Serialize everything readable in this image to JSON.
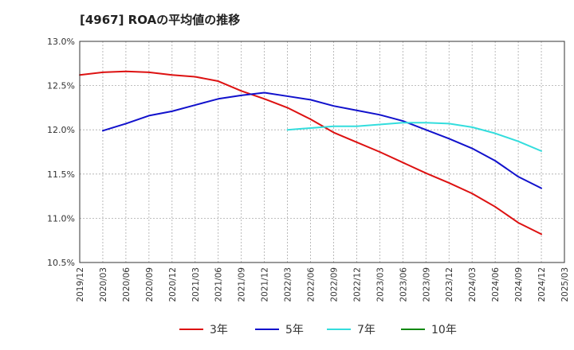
{
  "chart_data": {
    "type": "line",
    "title": "[4967]  ROAの平均値の推移",
    "xlabel": "",
    "ylabel": "",
    "x_ticks": [
      "2019/12",
      "2020/03",
      "2020/06",
      "2020/09",
      "2020/12",
      "2021/03",
      "2021/06",
      "2021/09",
      "2021/12",
      "2022/03",
      "2022/06",
      "2022/09",
      "2022/12",
      "2023/03",
      "2023/06",
      "2023/09",
      "2023/12",
      "2024/03",
      "2024/06",
      "2024/09",
      "2024/12",
      "2025/03"
    ],
    "y_ticks": [
      "10.5%",
      "11.0%",
      "11.5%",
      "12.0%",
      "12.5%",
      "13.0%"
    ],
    "ylim": [
      10.5,
      13.0
    ],
    "grid": true,
    "legend_position": "bottom",
    "series": [
      {
        "name": "3年",
        "color": "#dd1111",
        "x": [
          "2019/12",
          "2020/03",
          "2020/06",
          "2020/09",
          "2020/12",
          "2021/03",
          "2021/06",
          "2021/09",
          "2021/12",
          "2022/03",
          "2022/06",
          "2022/09",
          "2022/12",
          "2023/03",
          "2023/06",
          "2023/09",
          "2023/12",
          "2024/03",
          "2024/06",
          "2024/09",
          "2024/12"
        ],
        "values": [
          12.62,
          12.65,
          12.66,
          12.65,
          12.62,
          12.6,
          12.55,
          12.44,
          12.35,
          12.25,
          12.12,
          11.97,
          11.86,
          11.75,
          11.63,
          11.51,
          11.4,
          11.28,
          11.13,
          10.95,
          10.82
        ]
      },
      {
        "name": "5年",
        "color": "#1111cc",
        "x": [
          "2020/03",
          "2020/06",
          "2020/09",
          "2020/12",
          "2021/03",
          "2021/06",
          "2021/09",
          "2021/12",
          "2022/03",
          "2022/06",
          "2022/09",
          "2022/12",
          "2023/03",
          "2023/06",
          "2023/09",
          "2023/12",
          "2024/03",
          "2024/06",
          "2024/09",
          "2024/12"
        ],
        "values": [
          11.99,
          12.07,
          12.16,
          12.21,
          12.28,
          12.35,
          12.39,
          12.42,
          12.38,
          12.34,
          12.27,
          12.22,
          12.17,
          12.1,
          12.0,
          11.9,
          11.79,
          11.65,
          11.47,
          11.34
        ]
      },
      {
        "name": "7年",
        "color": "#33dddd",
        "x": [
          "2022/03",
          "2022/06",
          "2022/09",
          "2022/12",
          "2023/03",
          "2023/06",
          "2023/09",
          "2023/12",
          "2024/03",
          "2024/06",
          "2024/09",
          "2024/12"
        ],
        "values": [
          12.0,
          12.02,
          12.04,
          12.04,
          12.06,
          12.08,
          12.08,
          12.07,
          12.03,
          11.96,
          11.87,
          11.76
        ]
      },
      {
        "name": "10年",
        "color": "#118811",
        "x": [],
        "values": []
      }
    ]
  }
}
